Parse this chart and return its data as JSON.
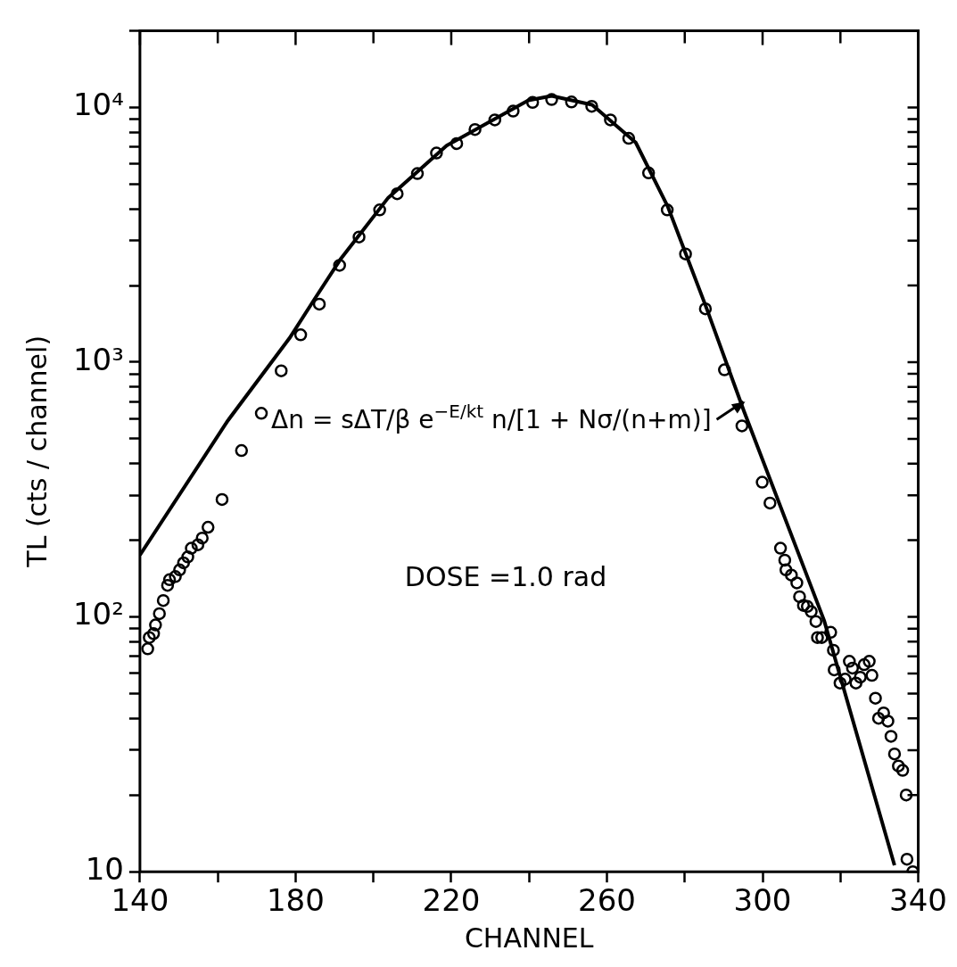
{
  "chart_data": {
    "type": "scatter",
    "xlabel": "CHANNEL",
    "ylabel": "TL (cts / channel)",
    "log": "y",
    "legend": false,
    "xlim": [
      140,
      340
    ],
    "xticks": [
      140,
      {
        "value": 160,
        "label": null
      },
      180,
      {
        "value": 200,
        "label": null
      },
      220,
      {
        "value": 240,
        "label": null
      },
      260,
      {
        "value": 280,
        "label": null
      },
      300,
      {
        "value": 320,
        "label": null
      },
      340
    ],
    "ylim": [
      10,
      20000
    ],
    "yticks": [
      10,
      {
        "value": 20,
        "label": null
      },
      {
        "value": 30,
        "label": null
      },
      {
        "value": 40,
        "label": null
      },
      {
        "value": 50,
        "label": null
      },
      {
        "value": 60,
        "label": null
      },
      {
        "value": 70,
        "label": null
      },
      {
        "value": 80,
        "label": null
      },
      {
        "value": 90,
        "label": null
      },
      {
        "value": 100,
        "label": "10²"
      },
      {
        "value": 200,
        "label": null
      },
      {
        "value": 300,
        "label": null
      },
      {
        "value": 400,
        "label": null
      },
      {
        "value": 500,
        "label": null
      },
      {
        "value": 600,
        "label": null
      },
      {
        "value": 700,
        "label": null
      },
      {
        "value": 800,
        "label": null
      },
      {
        "value": 900,
        "label": null
      },
      {
        "value": 1000,
        "label": "10³"
      },
      {
        "value": 2000,
        "label": null
      },
      {
        "value": 3000,
        "label": null
      },
      {
        "value": 4000,
        "label": null
      },
      {
        "value": 5000,
        "label": null
      },
      {
        "value": 6000,
        "label": null
      },
      {
        "value": 7000,
        "label": null
      },
      {
        "value": 8000,
        "label": null
      },
      {
        "value": 9000,
        "label": null
      },
      {
        "value": 10000,
        "label": "10⁴"
      },
      {
        "value": 20000,
        "label": null
      }
    ],
    "series": [
      {
        "type": "scatter",
        "marker": "circle",
        "color": "#000000",
        "x": [
          142,
          142.4,
          143.5,
          144,
          145,
          146,
          147.1,
          147.6,
          149.1,
          150.2,
          151.2,
          152.3,
          153.2,
          154.9,
          156,
          157.5,
          161.1,
          166.1,
          171.2,
          176.3,
          181.3,
          186.1,
          191.3,
          196.3,
          201.6,
          206.1,
          211.3,
          216.2,
          221.4,
          226.1,
          231.2,
          235.9,
          240.9,
          245.8,
          250.9,
          256.1,
          260.9,
          265.6,
          270.7,
          275.5,
          280.2,
          285.3,
          290.2,
          294.7,
          299.9,
          301.9,
          304.6,
          305.7,
          306,
          307.4,
          308.8,
          309.5,
          310.5,
          311.5,
          312.5,
          313.7,
          314.1,
          315.2,
          317.5,
          318.2,
          318.4,
          319.9,
          321.2,
          322.3,
          323.1,
          324,
          325.1,
          326.1,
          327.4,
          328.1,
          329,
          329.8,
          331.1,
          332.2,
          333,
          333.9,
          334.9,
          336,
          336.9,
          337.1,
          338.6
        ],
        "values": [
          75,
          83,
          86,
          93,
          103,
          116,
          133,
          140,
          144,
          153,
          163,
          172,
          186,
          192,
          204,
          225,
          289,
          450,
          630,
          925,
          1280,
          1690,
          2400,
          3100,
          3960,
          4580,
          5500,
          6620,
          7210,
          8190,
          8930,
          9670,
          10460,
          10740,
          10500,
          10100,
          8930,
          7560,
          5530,
          3960,
          2660,
          1620,
          933,
          562,
          338,
          280,
          186,
          167,
          153,
          146,
          136,
          120,
          111,
          110,
          105,
          96,
          83,
          83,
          87,
          74,
          62,
          55,
          57,
          67,
          63,
          55,
          58,
          65,
          67,
          59,
          48,
          40,
          42,
          39,
          34,
          29,
          26,
          25,
          20,
          11.2,
          10
        ]
      },
      {
        "type": "line",
        "marker": "none",
        "color": "#000000",
        "x": [
          140,
          162.6,
          178.4,
          185.1,
          191.5,
          203.8,
          218.8,
          239.8,
          245.8,
          256.2,
          267.4,
          275.7,
          285.4,
          295.2,
          315.8,
          333.9
        ],
        "values": [
          175,
          590,
          1240,
          1790,
          2530,
          4420,
          7080,
          10650,
          11100,
          10230,
          7280,
          4060,
          1660,
          643,
          97,
          10.6
        ]
      }
    ],
    "annotations": [
      {
        "text": "Δn = sΔT/β e$^{−E/kt}$ n/[1 + Nσ/(n+m)]",
        "x": 296,
        "y": 700
      },
      "DOSE =1.0 rad"
    ]
  }
}
